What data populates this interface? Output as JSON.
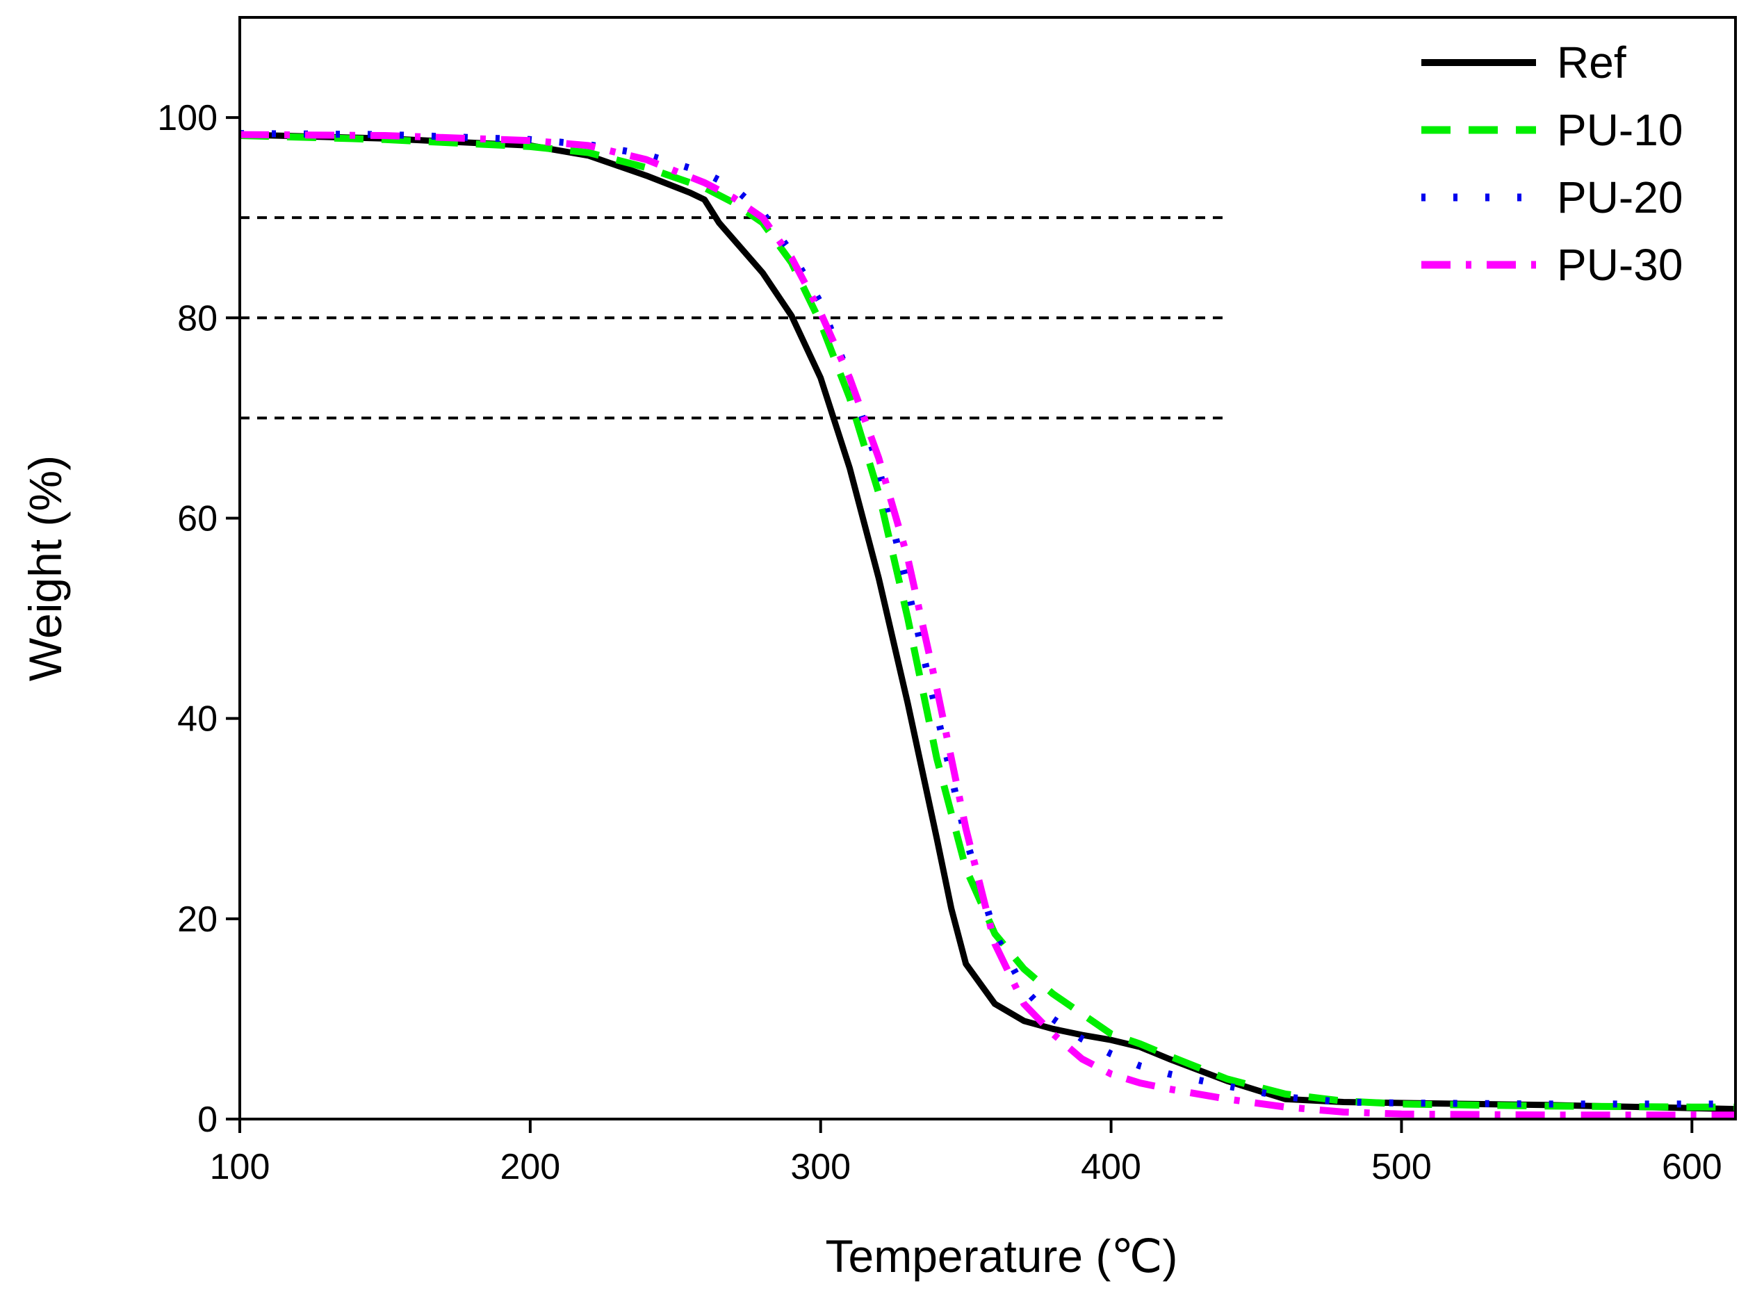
{
  "chart_data": {
    "type": "line",
    "xlabel": "Temperature (℃)",
    "ylabel": "Weight (%)",
    "xlim": [
      100,
      615
    ],
    "ylim": [
      0,
      110
    ],
    "xticks": [
      100,
      200,
      300,
      400,
      500,
      600
    ],
    "yticks": [
      0,
      20,
      40,
      60,
      80,
      100
    ],
    "xtick_labels": [
      "100",
      "200",
      "300",
      "400",
      "500",
      "600"
    ],
    "ytick_labels": [
      "0",
      "20",
      "40",
      "60",
      "80",
      "100"
    ],
    "legend_position": "top-right",
    "reference_lines": [
      {
        "y": 90,
        "x_start": 100,
        "x_end": 440
      },
      {
        "y": 80,
        "x_start": 100,
        "x_end": 440
      },
      {
        "y": 70,
        "x_start": 100,
        "x_end": 440
      }
    ],
    "series": [
      {
        "name": "Ref",
        "color": "#000000",
        "style": "solid",
        "x": [
          100,
          150,
          200,
          220,
          240,
          255,
          260,
          265,
          280,
          290,
          300,
          310,
          320,
          330,
          340,
          345,
          350,
          360,
          370,
          380,
          390,
          400,
          410,
          420,
          440,
          460,
          480,
          500,
          550,
          600,
          615
        ],
        "y": [
          98.3,
          97.9,
          97.2,
          96.2,
          94.2,
          92.5,
          91.8,
          89.5,
          84.5,
          80.2,
          74.0,
          65.0,
          54.0,
          41.5,
          28.0,
          21.0,
          15.5,
          11.5,
          9.8,
          9.0,
          8.4,
          7.9,
          7.2,
          6.0,
          3.8,
          2.0,
          1.7,
          1.6,
          1.4,
          1.1,
          1.0
        ]
      },
      {
        "name": "PU-10",
        "color": "#00ee00",
        "style": "dashed",
        "x": [
          100,
          150,
          200,
          220,
          240,
          260,
          270,
          280,
          290,
          300,
          310,
          320,
          330,
          340,
          350,
          360,
          370,
          380,
          390,
          400,
          410,
          420,
          440,
          460,
          480,
          500,
          550,
          600,
          615
        ],
        "y": [
          98.2,
          97.8,
          97.1,
          96.5,
          95.0,
          93.0,
          91.5,
          89.5,
          85.5,
          79.5,
          72.0,
          62.5,
          50.0,
          36.0,
          25.0,
          18.5,
          15.0,
          12.5,
          10.5,
          8.5,
          7.5,
          6.3,
          4.0,
          2.5,
          1.8,
          1.5,
          1.3,
          1.2,
          1.2
        ]
      },
      {
        "name": "PU-20",
        "color": "#0000ee",
        "style": "dotted",
        "x": [
          100,
          150,
          200,
          220,
          240,
          260,
          270,
          280,
          290,
          300,
          310,
          320,
          330,
          340,
          350,
          360,
          370,
          380,
          390,
          400,
          410,
          420,
          440,
          460,
          480,
          500,
          550,
          600,
          615
        ],
        "y": [
          98.4,
          98.3,
          97.8,
          97.3,
          96.3,
          94.5,
          93.0,
          90.5,
          86.5,
          81.5,
          74.0,
          65.0,
          53.0,
          40.5,
          28.0,
          18.5,
          13.0,
          10.0,
          8.0,
          6.5,
          5.3,
          4.5,
          3.3,
          2.2,
          1.7,
          1.6,
          1.5,
          1.5,
          1.5
        ]
      },
      {
        "name": "PU-30",
        "color": "#ff00ff",
        "style": "dashdot",
        "x": [
          100,
          150,
          200,
          220,
          240,
          260,
          270,
          280,
          290,
          300,
          310,
          320,
          330,
          340,
          350,
          360,
          370,
          380,
          390,
          400,
          410,
          420,
          440,
          460,
          480,
          500,
          550,
          600,
          615
        ],
        "y": [
          98.3,
          98.2,
          97.7,
          97.2,
          95.8,
          93.5,
          92.0,
          90.0,
          86.0,
          80.5,
          74.0,
          66.0,
          56.0,
          43.0,
          29.0,
          17.5,
          11.5,
          8.5,
          6.0,
          4.5,
          3.6,
          3.0,
          2.0,
          1.2,
          0.7,
          0.5,
          0.4,
          0.4,
          0.4
        ]
      }
    ]
  }
}
